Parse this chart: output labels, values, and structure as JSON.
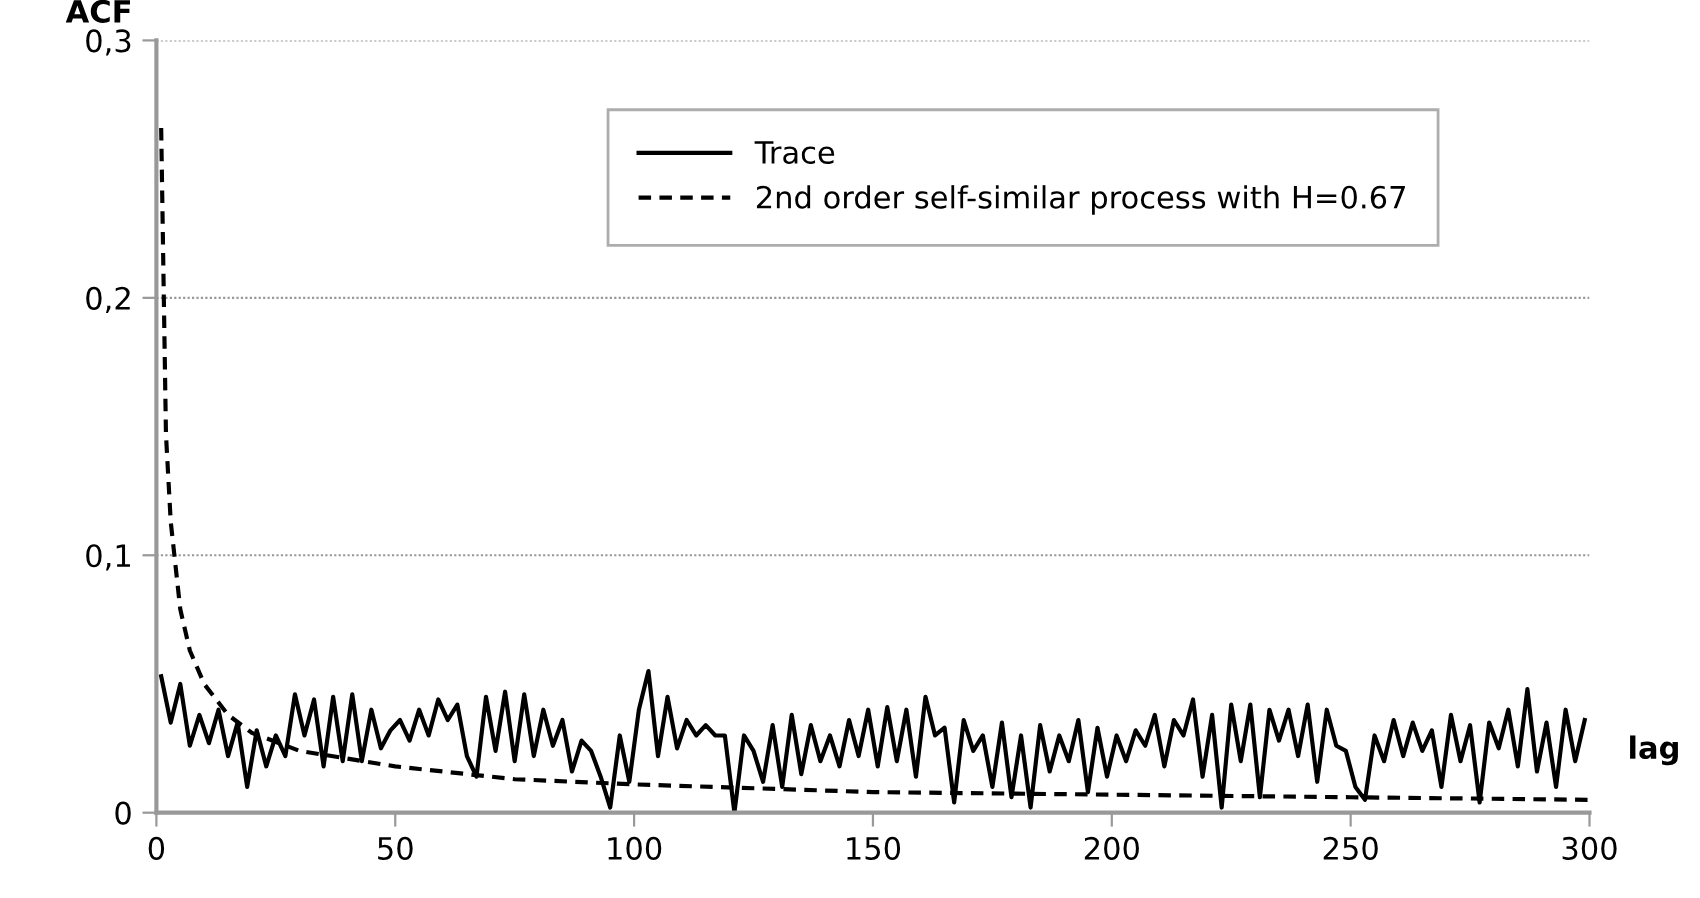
{
  "chart_data": {
    "type": "line",
    "ylabel": "ACF",
    "xlabel": "lag",
    "xlim": [
      0,
      300
    ],
    "xticks": [
      0,
      50,
      100,
      150,
      200,
      250,
      300
    ],
    "ylim": [
      0,
      0.3
    ],
    "yticks": [
      {
        "value": 0,
        "label": "0"
      },
      {
        "value": 0.1,
        "label": "0,1"
      },
      {
        "value": 0.2,
        "label": "0,2"
      },
      {
        "value": 0.3,
        "label": "0,3"
      }
    ],
    "grid": "y",
    "legend": "top right",
    "series": [
      {
        "name": "Trace",
        "color": "#000000",
        "line_style": "solid",
        "x": [
          1,
          3,
          5,
          7,
          9,
          11,
          13,
          15,
          17,
          19,
          21,
          23,
          25,
          27,
          29,
          31,
          33,
          35,
          37,
          39,
          41,
          43,
          45,
          47,
          49,
          51,
          53,
          55,
          57,
          59,
          61,
          63,
          65,
          67,
          69,
          71,
          73,
          75,
          77,
          79,
          81,
          83,
          85,
          87,
          89,
          91,
          93,
          95,
          97,
          99,
          101,
          103,
          105,
          107,
          109,
          111,
          113,
          115,
          117,
          119,
          121,
          123,
          125,
          127,
          129,
          131,
          133,
          135,
          137,
          139,
          141,
          143,
          145,
          147,
          149,
          151,
          153,
          155,
          157,
          159,
          161,
          163,
          165,
          167,
          169,
          171,
          173,
          175,
          177,
          179,
          181,
          183,
          185,
          187,
          189,
          191,
          193,
          195,
          197,
          199,
          201,
          203,
          205,
          207,
          209,
          211,
          213,
          215,
          217,
          219,
          221,
          223,
          225,
          227,
          229,
          231,
          233,
          235,
          237,
          239,
          241,
          243,
          245,
          247,
          249,
          251,
          253,
          255,
          257,
          259,
          261,
          263,
          265,
          267,
          269,
          271,
          273,
          275,
          277,
          279,
          281,
          283,
          285,
          287,
          289,
          291,
          293,
          295,
          297,
          299
        ],
        "values": [
          0.053,
          0.035,
          0.05,
          0.026,
          0.038,
          0.027,
          0.04,
          0.022,
          0.035,
          0.01,
          0.032,
          0.018,
          0.03,
          0.022,
          0.046,
          0.03,
          0.044,
          0.018,
          0.045,
          0.02,
          0.046,
          0.02,
          0.04,
          0.025,
          0.032,
          0.036,
          0.028,
          0.04,
          0.03,
          0.044,
          0.036,
          0.042,
          0.022,
          0.014,
          0.045,
          0.024,
          0.047,
          0.02,
          0.046,
          0.022,
          0.04,
          0.026,
          0.036,
          0.016,
          0.028,
          0.024,
          0.014,
          0.002,
          0.03,
          0.012,
          0.04,
          0.055,
          0.022,
          0.045,
          0.025,
          0.036,
          0.03,
          0.034,
          0.03,
          0.03,
          0.0,
          0.03,
          0.024,
          0.012,
          0.034,
          0.01,
          0.038,
          0.015,
          0.034,
          0.02,
          0.03,
          0.018,
          0.036,
          0.022,
          0.04,
          0.018,
          0.041,
          0.02,
          0.04,
          0.014,
          0.045,
          0.03,
          0.033,
          0.004,
          0.036,
          0.024,
          0.03,
          0.01,
          0.035,
          0.006,
          0.03,
          0.002,
          0.034,
          0.016,
          0.03,
          0.02,
          0.036,
          0.008,
          0.033,
          0.014,
          0.03,
          0.02,
          0.032,
          0.026,
          0.038,
          0.018,
          0.036,
          0.03,
          0.044,
          0.014,
          0.038,
          0.002,
          0.042,
          0.02,
          0.042,
          0.006,
          0.04,
          0.028,
          0.04,
          0.022,
          0.042,
          0.012,
          0.04,
          0.026,
          0.024,
          0.01,
          0.005,
          0.03,
          0.02,
          0.036,
          0.022,
          0.035,
          0.024,
          0.032,
          0.01,
          0.038,
          0.02,
          0.034,
          0.004,
          0.035,
          0.025,
          0.04,
          0.018,
          0.048,
          0.016,
          0.035,
          0.01,
          0.04,
          0.02,
          0.036
        ]
      },
      {
        "name": "2nd order self-similar process with H=0.67",
        "color": "#000000",
        "line_style": "dashed",
        "x": [
          1,
          2,
          3,
          5,
          7,
          10,
          15,
          20,
          30,
          50,
          75,
          100,
          150,
          200,
          250,
          300
        ],
        "values": [
          0.266,
          0.147,
          0.113,
          0.079,
          0.063,
          0.05,
          0.038,
          0.031,
          0.024,
          0.018,
          0.013,
          0.011,
          0.008,
          0.007,
          0.006,
          0.005
        ]
      }
    ]
  }
}
